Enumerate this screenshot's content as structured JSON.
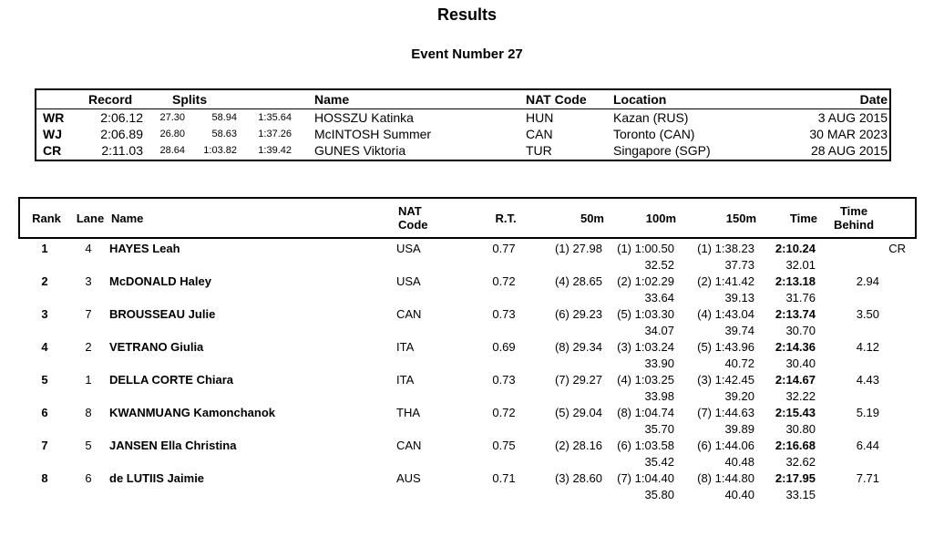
{
  "page": {
    "title": "Results",
    "subtitle": "Event Number 27"
  },
  "records_table": {
    "headers": {
      "record": "Record",
      "splits": "Splits",
      "name": "Name",
      "nat_code": "NAT Code",
      "location": "Location",
      "date": "Date"
    },
    "rows": [
      {
        "label": "WR",
        "record": "2:06.12",
        "splits": [
          "27.30",
          "58.94",
          "1:35.64"
        ],
        "name": "HOSSZU Katinka",
        "nat_code": "HUN",
        "location": "Kazan (RUS)",
        "date": "3 AUG 2015"
      },
      {
        "label": "WJ",
        "record": "2:06.89",
        "splits": [
          "26.80",
          "58.63",
          "1:37.26"
        ],
        "name": "McINTOSH Summer",
        "nat_code": "CAN",
        "location": "Toronto (CAN)",
        "date": "30 MAR 2023"
      },
      {
        "label": "CR",
        "record": "2:11.03",
        "splits": [
          "28.64",
          "1:03.82",
          "1:39.42"
        ],
        "name": "GUNES Viktoria",
        "nat_code": "TUR",
        "location": "Singapore (SGP)",
        "date": "28 AUG 2015"
      }
    ]
  },
  "results_table": {
    "headers": {
      "rank": "Rank",
      "lane": "Lane",
      "name": "Name",
      "nat_code": "NAT\nCode",
      "rt": "R.T.",
      "m50": "50m",
      "m100": "100m",
      "m150": "150m",
      "time": "Time",
      "behind": "Time\nBehind"
    },
    "rows": [
      {
        "rank": "1",
        "lane": "4",
        "name": "HAYES Leah",
        "nat_code": "USA",
        "rt": "0.77",
        "m50": "(1) 27.98",
        "m100": "(1) 1:00.50",
        "m100_split": "32.52",
        "m150": "(1) 1:38.23",
        "m150_split": "37.73",
        "time": "2:10.24",
        "time_split": "32.01",
        "behind": "",
        "flag": "CR"
      },
      {
        "rank": "2",
        "lane": "3",
        "name": "McDONALD Haley",
        "nat_code": "USA",
        "rt": "0.72",
        "m50": "(4) 28.65",
        "m100": "(2) 1:02.29",
        "m100_split": "33.64",
        "m150": "(2) 1:41.42",
        "m150_split": "39.13",
        "time": "2:13.18",
        "time_split": "31.76",
        "behind": "2.94",
        "flag": ""
      },
      {
        "rank": "3",
        "lane": "7",
        "name": "BROUSSEAU Julie",
        "nat_code": "CAN",
        "rt": "0.73",
        "m50": "(6) 29.23",
        "m100": "(5) 1:03.30",
        "m100_split": "34.07",
        "m150": "(4) 1:43.04",
        "m150_split": "39.74",
        "time": "2:13.74",
        "time_split": "30.70",
        "behind": "3.50",
        "flag": ""
      },
      {
        "rank": "4",
        "lane": "2",
        "name": "VETRANO Giulia",
        "nat_code": "ITA",
        "rt": "0.69",
        "m50": "(8) 29.34",
        "m100": "(3) 1:03.24",
        "m100_split": "33.90",
        "m150": "(5) 1:43.96",
        "m150_split": "40.72",
        "time": "2:14.36",
        "time_split": "30.40",
        "behind": "4.12",
        "flag": ""
      },
      {
        "rank": "5",
        "lane": "1",
        "name": "DELLA CORTE Chiara",
        "nat_code": "ITA",
        "rt": "0.73",
        "m50": "(7) 29.27",
        "m100": "(4) 1:03.25",
        "m100_split": "33.98",
        "m150": "(3) 1:42.45",
        "m150_split": "39.20",
        "time": "2:14.67",
        "time_split": "32.22",
        "behind": "4.43",
        "flag": ""
      },
      {
        "rank": "6",
        "lane": "8",
        "name": "KWANMUANG Kamonchanok",
        "nat_code": "THA",
        "rt": "0.72",
        "m50": "(5) 29.04",
        "m100": "(8) 1:04.74",
        "m100_split": "35.70",
        "m150": "(7) 1:44.63",
        "m150_split": "39.89",
        "time": "2:15.43",
        "time_split": "30.80",
        "behind": "5.19",
        "flag": ""
      },
      {
        "rank": "7",
        "lane": "5",
        "name": "JANSEN Ella Christina",
        "nat_code": "CAN",
        "rt": "0.75",
        "m50": "(2) 28.16",
        "m100": "(6) 1:03.58",
        "m100_split": "35.42",
        "m150": "(6) 1:44.06",
        "m150_split": "40.48",
        "time": "2:16.68",
        "time_split": "32.62",
        "behind": "6.44",
        "flag": ""
      },
      {
        "rank": "8",
        "lane": "6",
        "name": "de LUTIIS Jaimie",
        "nat_code": "AUS",
        "rt": "0.71",
        "m50": "(3) 28.60",
        "m100": "(7) 1:04.40",
        "m100_split": "35.80",
        "m150": "(8) 1:44.80",
        "m150_split": "40.40",
        "time": "2:17.95",
        "time_split": "33.15",
        "behind": "7.71",
        "flag": ""
      }
    ]
  }
}
